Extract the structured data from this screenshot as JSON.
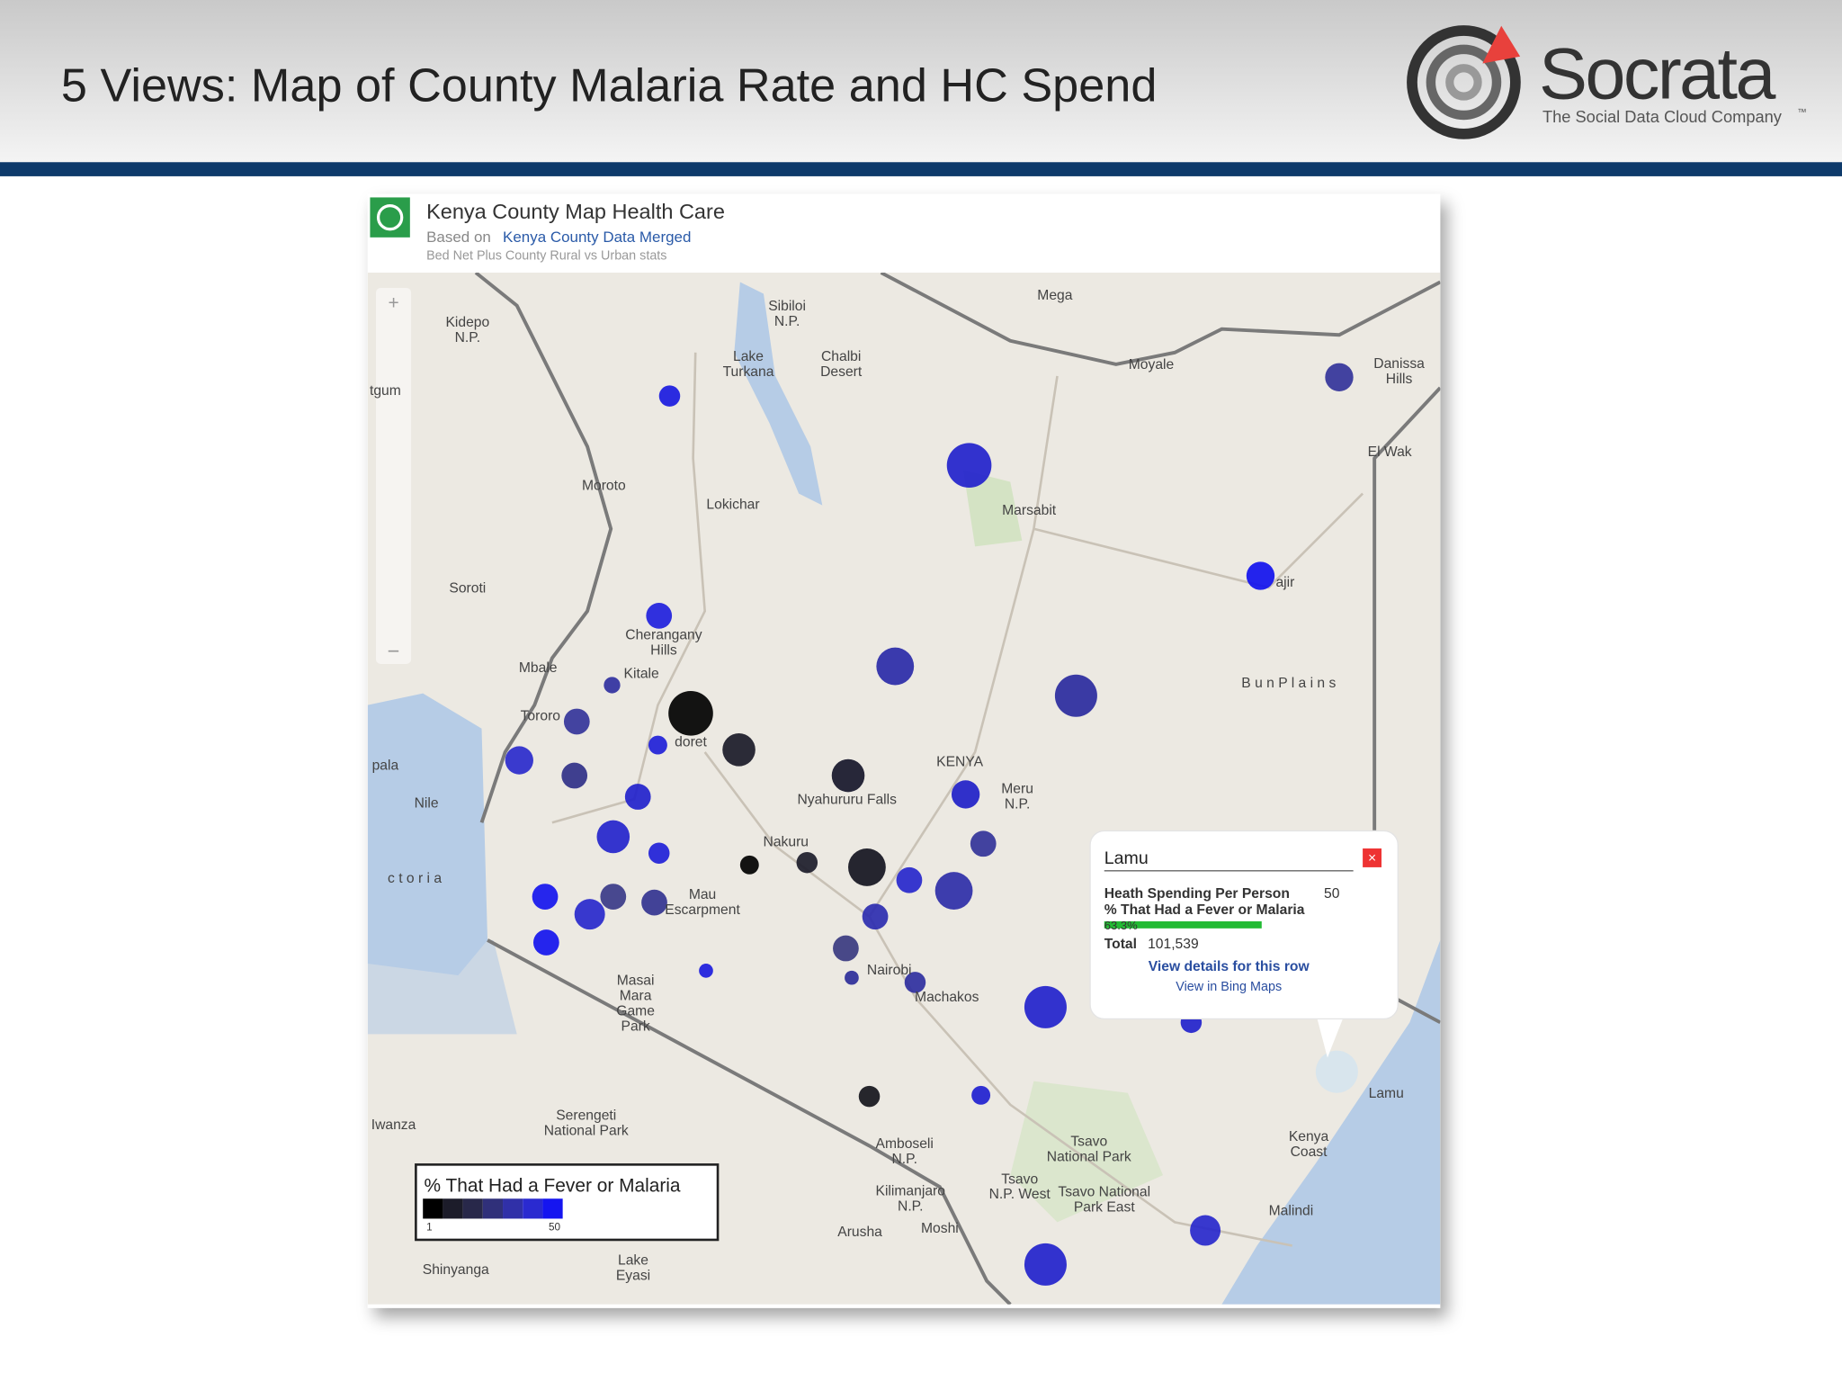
{
  "slide": {
    "title": "5 Views: Map of County Malaria Rate and HC Spend",
    "logo": {
      "name": "Socrata",
      "tagline": "The Social Data Cloud Company",
      "tm": "™"
    }
  },
  "panel": {
    "title": "Kenya County Map Health Care",
    "based_on": "Based on",
    "dataset": "Kenya County Data Merged",
    "subtitle": "Bed Net Plus County Rural vs Urban stats"
  },
  "map_labels": [
    [
      "Mega"
    ],
    [
      "Sibiloi",
      "N.P."
    ],
    [
      "Lake",
      "Turkana"
    ],
    [
      "Chalbi",
      "Desert"
    ],
    [
      "Kidepo",
      "N.P."
    ],
    [
      "Moyale"
    ],
    [
      "Danissa",
      "Hills"
    ],
    [
      "El Wak"
    ],
    [
      "Moroto"
    ],
    [
      "Lokichar"
    ],
    [
      "Marsabit"
    ],
    [
      "Soroti"
    ],
    [
      "ajir"
    ],
    [
      "Cherangany",
      "Hills"
    ],
    [
      "Kitale"
    ],
    [
      "Mbale"
    ],
    [
      "Tororo"
    ],
    [
      "doret"
    ],
    [
      "KENYA"
    ],
    [
      "B u n   P l a i n s"
    ],
    [
      "Nyahururu Falls"
    ],
    [
      "Meru",
      "N.P."
    ],
    [
      "Nakuru"
    ],
    [
      "Nile"
    ],
    [
      "pala"
    ],
    [
      "c t o r i a"
    ],
    [
      "Mau",
      "Escarpment"
    ],
    [
      "Nairobi"
    ],
    [
      "Machakos"
    ],
    [
      "Masai",
      "Mara",
      "Game",
      "Park"
    ],
    [
      "Serengeti",
      "National Park"
    ],
    [
      "Iwanza"
    ],
    [
      "Amboseli",
      "N.P."
    ],
    [
      "Tsavo",
      "National Park"
    ],
    [
      "Tsavo",
      "N.P. West"
    ],
    [
      "Tsavo National",
      "Park East"
    ],
    [
      "Kilimanjaro",
      "N.P."
    ],
    [
      "Arusha"
    ],
    [
      "Moshi"
    ],
    [
      "Malindi"
    ],
    [
      "Lamu"
    ],
    [
      "Kenya",
      "Coast"
    ],
    [
      "Lake",
      "Eyasi"
    ],
    [
      "Shinyanga"
    ],
    [
      "tgum"
    ]
  ],
  "popup": {
    "title": "Lamu",
    "rows": [
      {
        "label": "Heath Spending Per Person",
        "value": "50"
      },
      {
        "label": "% That Had a Fever or Malaria",
        "value": "63.3%"
      },
      {
        "label": "Total",
        "value": "101,539"
      }
    ],
    "links": [
      "View details for this row",
      "View in Bing Maps"
    ]
  },
  "legend": {
    "title": "% That Had a Fever or Malaria",
    "min": "1",
    "max": "50"
  }
}
